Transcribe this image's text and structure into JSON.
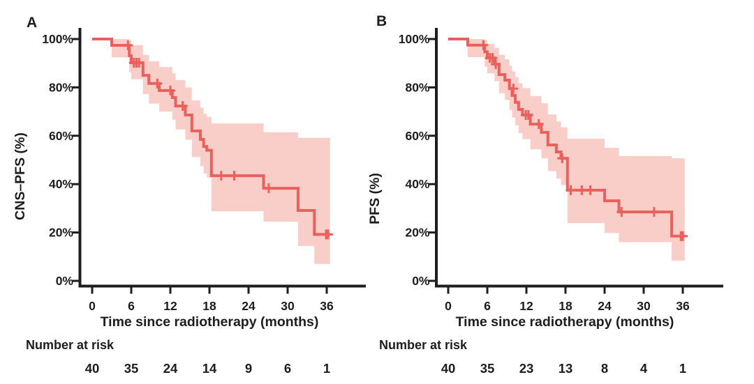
{
  "colors": {
    "curve": "#e9615c",
    "ci_band": "#facec8",
    "axis": "#1d1d1d",
    "text": "#1d1d1d",
    "background": "#ffffff"
  },
  "figure": {
    "panels": [
      {
        "panel_label": "A",
        "ylabel": "CNS–PFS (%)",
        "xlabel": "Time since radiotherapy (months)",
        "risk_title": "Number at risk",
        "risk_counts": [
          40,
          35,
          24,
          14,
          9,
          6,
          1
        ]
      },
      {
        "panel_label": "B",
        "ylabel": "PFS (%)",
        "xlabel": "Time since radiotherapy (months)",
        "risk_title": "Number at risk",
        "risk_counts": [
          40,
          35,
          23,
          13,
          8,
          4,
          1
        ]
      }
    ]
  },
  "chart_data": [
    {
      "type": "line",
      "subtype": "kaplan-meier-step",
      "panel": "A",
      "title": "A",
      "xlabel": "Time since radiotherapy (months)",
      "ylabel": "CNS–PFS (%)",
      "xlim": [
        0,
        38
      ],
      "ylim": [
        0,
        100
      ],
      "grid": false,
      "ci_band": true,
      "x_ticks": [
        0,
        6,
        12,
        18,
        24,
        30,
        36
      ],
      "y_ticks": [
        {
          "value": 100,
          "label": "100%"
        },
        {
          "value": 80,
          "label": "80%"
        },
        {
          "value": 60,
          "label": "60%"
        },
        {
          "value": 40,
          "label": "40%"
        },
        {
          "value": 20,
          "label": "20%"
        },
        {
          "value": 0,
          "label": "0%"
        }
      ],
      "steps": [
        {
          "t": 0,
          "s": 100,
          "lo": 100,
          "hi": 100
        },
        {
          "t": 3.0,
          "s": 97.4,
          "lo": 92.4,
          "hi": 100
        },
        {
          "t": 5.7,
          "s": 93.1,
          "lo": 86.2,
          "hi": 99.5
        },
        {
          "t": 6.0,
          "s": 90.2,
          "lo": 83.4,
          "hi": 97.5
        },
        {
          "t": 7.8,
          "s": 85.0,
          "lo": 77.2,
          "hi": 93.4
        },
        {
          "t": 8.7,
          "s": 81.6,
          "lo": 73.3,
          "hi": 90.8
        },
        {
          "t": 10.3,
          "s": 78.7,
          "lo": 70.0,
          "hi": 88.4
        },
        {
          "t": 12.3,
          "s": 75.8,
          "lo": 66.6,
          "hi": 85.8
        },
        {
          "t": 12.8,
          "s": 72.3,
          "lo": 62.6,
          "hi": 83.0
        },
        {
          "t": 14.3,
          "s": 68.6,
          "lo": 58.4,
          "hi": 80.0
        },
        {
          "t": 15.3,
          "s": 62.0,
          "lo": 51.2,
          "hi": 74.6
        },
        {
          "t": 16.6,
          "s": 58.5,
          "lo": 47.5,
          "hi": 71.6
        },
        {
          "t": 17.1,
          "s": 55.6,
          "lo": 44.4,
          "hi": 69.1
        },
        {
          "t": 17.6,
          "s": 54.0,
          "lo": 42.7,
          "hi": 67.8
        },
        {
          "t": 18.3,
          "s": 43.5,
          "lo": 28.8,
          "hi": 65.1
        },
        {
          "t": 26.3,
          "s": 38.3,
          "lo": 24.5,
          "hi": 61.4
        },
        {
          "t": 31.6,
          "s": 29.1,
          "lo": 14.4,
          "hi": 59.1
        },
        {
          "t": 34.1,
          "s": 19.2,
          "lo": 7.0,
          "hi": 59.1
        },
        {
          "t": 36.5,
          "s": 19.2,
          "lo": 7.0,
          "hi": 59.1
        }
      ],
      "censor_marks": [
        {
          "t": 5.5,
          "s": 97.4
        },
        {
          "t": 6.4,
          "s": 90.2
        },
        {
          "t": 6.8,
          "s": 90.2
        },
        {
          "t": 7.2,
          "s": 90.2
        },
        {
          "t": 10.0,
          "s": 81.6
        },
        {
          "t": 12.0,
          "s": 78.7
        },
        {
          "t": 13.9,
          "s": 72.3
        },
        {
          "t": 19.8,
          "s": 43.5
        },
        {
          "t": 21.8,
          "s": 43.5
        },
        {
          "t": 27.1,
          "s": 38.3
        },
        {
          "t": 35.9,
          "s": 19.2
        },
        {
          "t": 36.2,
          "s": 19.2
        }
      ],
      "number_at_risk": {
        "times": [
          0,
          6,
          12,
          18,
          24,
          30,
          36
        ],
        "counts": [
          40,
          35,
          24,
          14,
          9,
          6,
          1
        ]
      }
    },
    {
      "type": "line",
      "subtype": "kaplan-meier-step",
      "panel": "B",
      "title": "B",
      "xlabel": "Time since radiotherapy (months)",
      "ylabel": "PFS (%)",
      "xlim": [
        0,
        38
      ],
      "ylim": [
        0,
        100
      ],
      "grid": false,
      "ci_band": true,
      "x_ticks": [
        0,
        6,
        12,
        18,
        24,
        30,
        36
      ],
      "y_ticks": [
        {
          "value": 100,
          "label": "100%"
        },
        {
          "value": 80,
          "label": "80%"
        },
        {
          "value": 60,
          "label": "60%"
        },
        {
          "value": 40,
          "label": "40%"
        },
        {
          "value": 20,
          "label": "20%"
        },
        {
          "value": 0,
          "label": "0%"
        }
      ],
      "steps": [
        {
          "t": 0,
          "s": 100,
          "lo": 100,
          "hi": 100
        },
        {
          "t": 3.0,
          "s": 97.5,
          "lo": 92.5,
          "hi": 100
        },
        {
          "t": 5.6,
          "s": 94.7,
          "lo": 88.6,
          "hi": 99.6
        },
        {
          "t": 6.0,
          "s": 92.2,
          "lo": 85.8,
          "hi": 98.0
        },
        {
          "t": 7.1,
          "s": 89.6,
          "lo": 82.6,
          "hi": 96.3
        },
        {
          "t": 7.8,
          "s": 85.3,
          "lo": 77.6,
          "hi": 93.5
        },
        {
          "t": 8.7,
          "s": 83.0,
          "lo": 74.8,
          "hi": 91.6
        },
        {
          "t": 9.4,
          "s": 79.5,
          "lo": 70.7,
          "hi": 88.9
        },
        {
          "t": 9.8,
          "s": 76.7,
          "lo": 67.5,
          "hi": 86.6
        },
        {
          "t": 10.3,
          "s": 73.8,
          "lo": 64.3,
          "hi": 84.2
        },
        {
          "t": 10.8,
          "s": 70.9,
          "lo": 61.1,
          "hi": 81.7
        },
        {
          "t": 11.4,
          "s": 68.6,
          "lo": 58.6,
          "hi": 79.7
        },
        {
          "t": 12.6,
          "s": 64.8,
          "lo": 54.4,
          "hi": 76.4
        },
        {
          "t": 14.3,
          "s": 61.4,
          "lo": 50.7,
          "hi": 73.4
        },
        {
          "t": 15.3,
          "s": 56.2,
          "lo": 45.4,
          "hi": 68.8
        },
        {
          "t": 16.6,
          "s": 53.3,
          "lo": 42.3,
          "hi": 65.9
        },
        {
          "t": 17.3,
          "s": 50.7,
          "lo": 39.6,
          "hi": 63.5
        },
        {
          "t": 18.3,
          "s": 37.5,
          "lo": 23.9,
          "hi": 58.8
        },
        {
          "t": 24.0,
          "s": 33.1,
          "lo": 19.8,
          "hi": 55.0
        },
        {
          "t": 26.2,
          "s": 28.5,
          "lo": 16.0,
          "hi": 51.6
        },
        {
          "t": 34.3,
          "s": 18.5,
          "lo": 8.4,
          "hi": 50.7
        },
        {
          "t": 36.3,
          "s": 18.5,
          "lo": 8.4,
          "hi": 50.7
        }
      ],
      "censor_marks": [
        {
          "t": 5.4,
          "s": 97.5
        },
        {
          "t": 6.4,
          "s": 92.2
        },
        {
          "t": 6.8,
          "s": 92.2
        },
        {
          "t": 7.3,
          "s": 89.6
        },
        {
          "t": 10.0,
          "s": 79.5
        },
        {
          "t": 11.9,
          "s": 68.6
        },
        {
          "t": 12.3,
          "s": 68.6
        },
        {
          "t": 13.9,
          "s": 64.8
        },
        {
          "t": 17.5,
          "s": 50.7
        },
        {
          "t": 18.8,
          "s": 37.5
        },
        {
          "t": 20.5,
          "s": 37.5
        },
        {
          "t": 21.8,
          "s": 37.5
        },
        {
          "t": 26.6,
          "s": 28.5
        },
        {
          "t": 31.6,
          "s": 28.5
        },
        {
          "t": 35.7,
          "s": 18.5
        },
        {
          "t": 36.0,
          "s": 18.5
        }
      ],
      "number_at_risk": {
        "times": [
          0,
          6,
          12,
          18,
          24,
          30,
          36
        ],
        "counts": [
          40,
          35,
          23,
          13,
          8,
          4,
          1
        ]
      }
    }
  ]
}
